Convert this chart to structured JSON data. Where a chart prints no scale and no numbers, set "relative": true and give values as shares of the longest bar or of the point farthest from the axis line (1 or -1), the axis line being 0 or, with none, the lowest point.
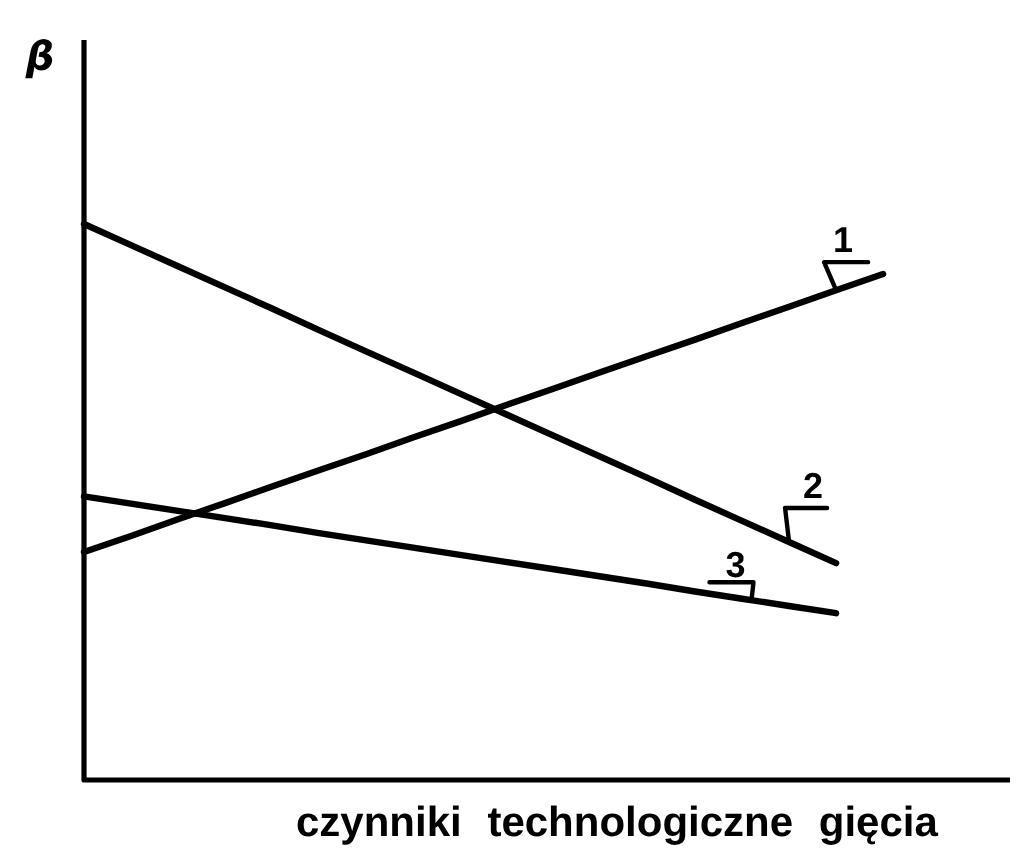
{
  "chart_data": {
    "type": "line",
    "relative": true,
    "ylabel": "β",
    "xlabel": "czynniki technologiczne gięcia",
    "categories": [
      null,
      null,
      null,
      null,
      null,
      null,
      null,
      null,
      null,
      null,
      null,
      null,
      null,
      null,
      null,
      null,
      null,
      null,
      null,
      null
    ],
    "series": [
      {
        "name": "1",
        "color": "#000000",
        "values": [
          0.41,
          0.439,
          0.469,
          0.498,
          0.528,
          0.557,
          0.586,
          0.616,
          0.645,
          0.675,
          0.704,
          0.734,
          0.763,
          0.792,
          0.822,
          0.851,
          0.881,
          0.91,
          null,
          null
        ]
      },
      {
        "name": "2",
        "color": "#000000",
        "values": [
          1.0,
          0.962,
          0.924,
          0.886,
          0.848,
          0.809,
          0.771,
          0.733,
          0.695,
          0.657,
          0.619,
          0.581,
          0.543,
          0.504,
          0.466,
          0.428,
          0.39,
          null,
          null,
          null
        ]
      },
      {
        "name": "3",
        "color": "#000000",
        "values": [
          0.51,
          0.497,
          0.484,
          0.471,
          0.458,
          0.444,
          0.431,
          0.418,
          0.405,
          0.392,
          0.379,
          0.366,
          0.353,
          0.339,
          0.326,
          0.313,
          0.3,
          null,
          null,
          null
        ]
      }
    ]
  }
}
